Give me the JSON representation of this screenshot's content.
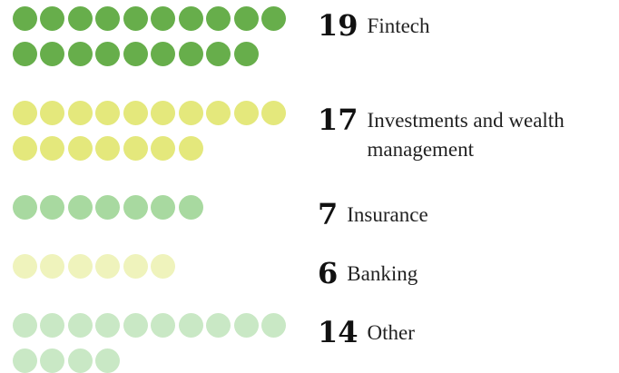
{
  "chart_data": {
    "type": "dots",
    "categories": [
      "Fintech",
      "Investments and wealth management",
      "Insurance",
      "Banking",
      "Other"
    ],
    "values": [
      19,
      17,
      7,
      6,
      14
    ],
    "colors": [
      "#67ae4b",
      "#e4e87c",
      "#a8d9a0",
      "#eff3bc",
      "#c9e8c5"
    ]
  }
}
